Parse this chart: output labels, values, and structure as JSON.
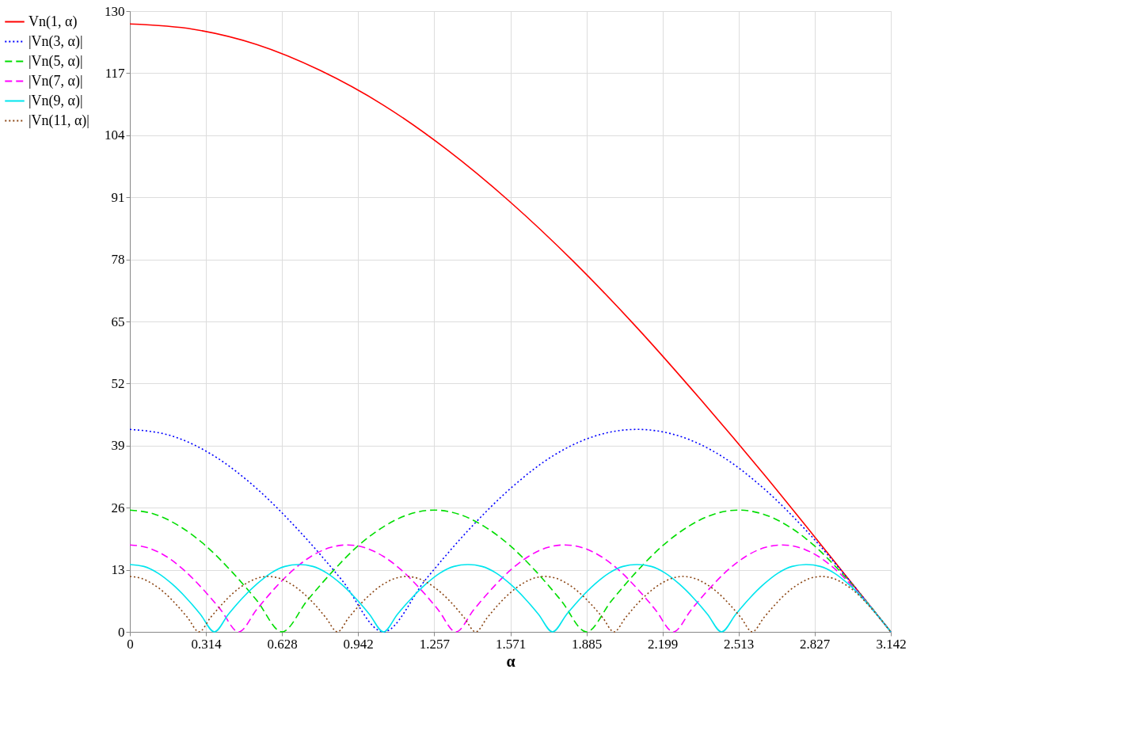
{
  "chart_data": {
    "type": "line",
    "xlabel": "α",
    "xlim": [
      0,
      3.142
    ],
    "ylim": [
      0,
      130
    ],
    "xticks": [
      0,
      0.314,
      0.628,
      0.942,
      1.257,
      1.571,
      1.885,
      2.199,
      2.513,
      2.827,
      3.142
    ],
    "yticks": [
      0,
      13,
      26,
      39,
      52,
      65,
      78,
      91,
      104,
      117,
      130
    ],
    "grid": true,
    "legend": "left",
    "series": [
      {
        "name": "Vn(1, α)",
        "color": "#ff0000",
        "line_style": "solid",
        "x": [
          0,
          0.262,
          0.524,
          0.785,
          1.047,
          1.309,
          1.571,
          1.833,
          2.094,
          2.356,
          2.618,
          2.88,
          3.142
        ],
        "values": [
          127.3,
          126.2,
          123.0,
          117.6,
          110.3,
          101.0,
          90.0,
          77.5,
          63.7,
          48.7,
          33.0,
          16.6,
          0
        ]
      },
      {
        "name": "|Vn(3, α)|",
        "color": "#0000ff",
        "line_style": "dotted",
        "x": [
          0,
          0.175,
          0.349,
          0.524,
          0.698,
          0.873,
          1.047,
          1.222,
          1.396,
          1.571,
          1.745,
          1.92,
          2.094,
          2.269,
          2.443,
          2.618,
          2.793,
          2.967,
          3.142
        ],
        "values": [
          42.4,
          41.0,
          36.8,
          30.0,
          21.2,
          11.0,
          0,
          11.0,
          21.2,
          30.0,
          36.8,
          41.0,
          42.4,
          41.0,
          36.8,
          30.0,
          21.2,
          11.0,
          0
        ]
      },
      {
        "name": "|Vn(5, α)|",
        "color": "#00dd00",
        "line_style": "dashed",
        "x": [
          0,
          0.105,
          0.209,
          0.314,
          0.419,
          0.524,
          0.628,
          0.733,
          0.838,
          0.942,
          1.047,
          1.152,
          1.257,
          1.361,
          1.466,
          1.571,
          1.676,
          1.78,
          1.885,
          1.99,
          2.094,
          2.199,
          2.304,
          2.409,
          2.513,
          2.618,
          2.723,
          2.827,
          2.932,
          3.037,
          3.142
        ],
        "values": [
          25.5,
          24.6,
          22.0,
          18.0,
          12.7,
          6.6,
          0,
          6.6,
          12.7,
          18.0,
          22.0,
          24.6,
          25.5,
          24.6,
          22.0,
          18.0,
          12.7,
          6.6,
          0,
          6.6,
          12.7,
          18.0,
          22.0,
          24.6,
          25.5,
          24.6,
          22.0,
          18.0,
          12.7,
          6.6,
          0
        ]
      },
      {
        "name": "|Vn(7, α)|",
        "color": "#ff00ff",
        "line_style": "dashed",
        "x": [
          0,
          0.075,
          0.15,
          0.224,
          0.299,
          0.374,
          0.449,
          0.524,
          0.598,
          0.673,
          0.748,
          0.823,
          0.898,
          0.972,
          1.047,
          1.122,
          1.197,
          1.272,
          1.346,
          1.421,
          1.496,
          1.571,
          1.646,
          1.72,
          1.795,
          1.87,
          1.945,
          2.02,
          2.094,
          2.169,
          2.244,
          2.319,
          2.394,
          2.468,
          2.543,
          2.618,
          2.693,
          2.768,
          2.843,
          2.917,
          2.992,
          3.067,
          3.142
        ],
        "values": [
          18.2,
          17.6,
          15.8,
          12.9,
          9.1,
          4.7,
          0,
          4.7,
          9.1,
          12.9,
          15.8,
          17.6,
          18.2,
          17.6,
          15.8,
          12.9,
          9.1,
          4.7,
          0,
          4.7,
          9.1,
          12.9,
          15.8,
          17.6,
          18.2,
          17.6,
          15.8,
          12.9,
          9.1,
          4.7,
          0,
          4.7,
          9.1,
          12.9,
          15.8,
          17.6,
          18.2,
          17.6,
          15.8,
          12.9,
          9.1,
          4.7,
          0
        ]
      },
      {
        "name": "|Vn(9, α)|",
        "color": "#00e5ee",
        "line_style": "solid",
        "x": [
          0,
          0.058,
          0.116,
          0.175,
          0.233,
          0.291,
          0.349,
          0.407,
          0.465,
          0.524,
          0.582,
          0.64,
          0.698,
          0.756,
          0.814,
          0.873,
          0.931,
          0.989,
          1.047,
          1.105,
          1.164,
          1.222,
          1.28,
          1.338,
          1.396,
          1.454,
          1.513,
          1.571,
          1.629,
          1.687,
          1.745,
          1.804,
          1.862,
          1.92,
          1.978,
          2.036,
          2.094,
          2.153,
          2.211,
          2.269,
          2.327,
          2.385,
          2.443,
          2.502,
          2.56,
          2.618,
          2.676,
          2.734,
          2.793,
          2.851,
          2.909,
          2.967,
          3.025,
          3.083,
          3.142
        ],
        "values": [
          14.1,
          13.7,
          12.3,
          10.0,
          7.1,
          3.7,
          0,
          3.7,
          7.1,
          10.0,
          12.3,
          13.7,
          14.1,
          13.7,
          12.3,
          10.0,
          7.1,
          3.7,
          0,
          3.7,
          7.1,
          10.0,
          12.3,
          13.7,
          14.1,
          13.7,
          12.3,
          10.0,
          7.1,
          3.7,
          0,
          3.7,
          7.1,
          10.0,
          12.3,
          13.7,
          14.1,
          13.7,
          12.3,
          10.0,
          7.1,
          3.7,
          0,
          3.7,
          7.1,
          10.0,
          12.3,
          13.7,
          14.1,
          13.7,
          12.3,
          10.0,
          7.1,
          3.7,
          0
        ]
      },
      {
        "name": "|Vn(11, α)|",
        "color": "#8b4513",
        "line_style": "dotted",
        "x": [
          0,
          0.048,
          0.095,
          0.143,
          0.19,
          0.238,
          0.286,
          0.333,
          0.381,
          0.428,
          0.476,
          0.524,
          0.571,
          0.619,
          0.666,
          0.714,
          0.762,
          0.809,
          0.857,
          0.904,
          0.952,
          1.0,
          1.047,
          1.095,
          1.142,
          1.19,
          1.238,
          1.285,
          1.333,
          1.38,
          1.428,
          1.476,
          1.523,
          1.571,
          1.618,
          1.666,
          1.714,
          1.761,
          1.809,
          1.856,
          1.904,
          1.952,
          1.999,
          2.047,
          2.094,
          2.142,
          2.19,
          2.237,
          2.285,
          2.332,
          2.38,
          2.428,
          2.475,
          2.523,
          2.57,
          2.618,
          2.666,
          2.713,
          2.761,
          2.808,
          2.856,
          2.904,
          2.951,
          2.999,
          3.046,
          3.094,
          3.142
        ],
        "values": [
          11.6,
          11.2,
          10.0,
          8.2,
          5.8,
          3.0,
          0,
          3.0,
          5.8,
          8.2,
          10.0,
          11.2,
          11.6,
          11.2,
          10.0,
          8.2,
          5.8,
          3.0,
          0,
          3.0,
          5.8,
          8.2,
          10.0,
          11.2,
          11.6,
          11.2,
          10.0,
          8.2,
          5.8,
          3.0,
          0,
          3.0,
          5.8,
          8.2,
          10.0,
          11.2,
          11.6,
          11.2,
          10.0,
          8.2,
          5.8,
          3.0,
          0,
          3.0,
          5.8,
          8.2,
          10.0,
          11.2,
          11.6,
          11.2,
          10.0,
          8.2,
          5.8,
          3.0,
          0,
          3.0,
          5.8,
          8.2,
          10.0,
          11.2,
          11.6,
          11.2,
          10.0,
          8.2,
          5.8,
          3.0,
          0
        ]
      }
    ]
  }
}
